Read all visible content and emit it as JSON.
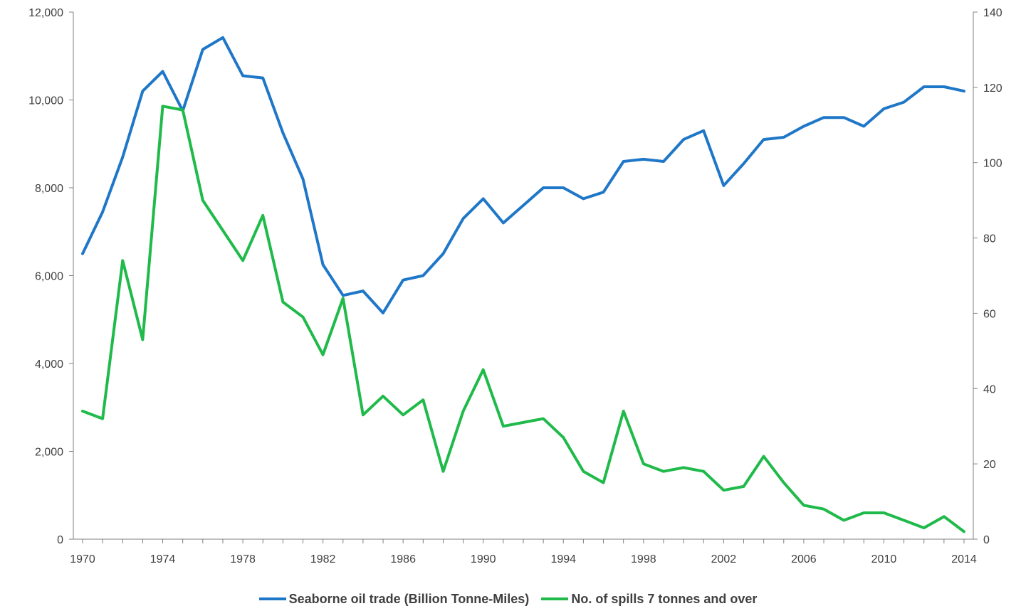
{
  "colors": {
    "trade": "#1f77c8",
    "spills": "#1fba4a",
    "axis": "#808080"
  },
  "chart_data": {
    "type": "line",
    "title": "",
    "xlabel": "",
    "ylabel": "",
    "x": [
      1970,
      1971,
      1972,
      1973,
      1974,
      1975,
      1976,
      1977,
      1978,
      1979,
      1980,
      1981,
      1982,
      1983,
      1984,
      1985,
      1986,
      1987,
      1988,
      1989,
      1990,
      1991,
      1992,
      1993,
      1994,
      1995,
      1996,
      1997,
      1998,
      1999,
      2000,
      2001,
      2002,
      2003,
      2004,
      2005,
      2006,
      2007,
      2008,
      2009,
      2010,
      2011,
      2012,
      2013,
      2014
    ],
    "x_ticks": [
      "1970",
      "1974",
      "1978",
      "1982",
      "1986",
      "1990",
      "1994",
      "1998",
      "2002",
      "2006",
      "2010",
      "2014"
    ],
    "y_left_ticks": [
      "0",
      "2,000",
      "4,000",
      "6,000",
      "8,000",
      "10,000",
      "12,000"
    ],
    "y_right_ticks": [
      "0",
      "20",
      "40",
      "60",
      "80",
      "100",
      "120",
      "140"
    ],
    "ylim_left": [
      0,
      12000
    ],
    "ylim_right": [
      0,
      140
    ],
    "grid": false,
    "legend_position": "bottom",
    "series": [
      {
        "name": "Seaborne oil trade (Billion Tonne-Miles)",
        "axis": "left",
        "values": [
          6500,
          7450,
          8700,
          10200,
          10650,
          9750,
          11150,
          11420,
          10550,
          10500,
          9250,
          8200,
          6250,
          5550,
          5650,
          5150,
          5900,
          6000,
          6500,
          7300,
          7750,
          7200,
          7600,
          8000,
          8000,
          7750,
          7900,
          8600,
          8650,
          8600,
          9100,
          9300,
          8050,
          8550,
          9100,
          9150,
          9400,
          9600,
          9600,
          9400,
          9800,
          9950,
          10300,
          10300,
          10200
        ]
      },
      {
        "name": "No. of spills 7 tonnes and over",
        "axis": "right",
        "values": [
          34,
          32,
          74,
          53,
          115,
          114,
          90,
          82,
          74,
          86,
          63,
          59,
          49,
          64,
          33,
          38,
          33,
          37,
          18,
          34,
          45,
          30,
          31,
          32,
          27,
          18,
          15,
          34,
          20,
          18,
          19,
          18,
          13,
          14,
          22,
          15,
          9,
          8,
          5,
          7,
          7,
          5,
          3,
          6,
          2
        ]
      }
    ]
  }
}
